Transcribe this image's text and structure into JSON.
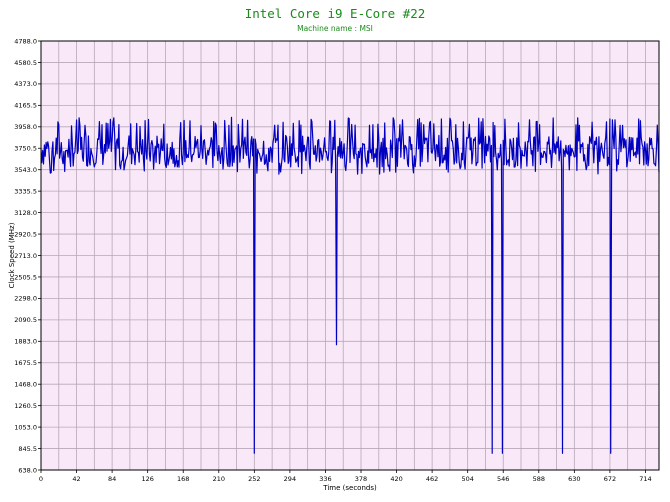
{
  "chart_data": {
    "type": "line",
    "title": "Intel Core i9 E-Core #22",
    "subtitle": "Machine name : MSI",
    "xlabel": "Time (seconds)",
    "ylabel": "Clock Speed (MHz)",
    "xlim": [
      0,
      730
    ],
    "ylim": [
      638.0,
      4788.0
    ],
    "x_ticks": [
      0,
      42,
      84,
      126,
      168,
      210,
      252,
      294,
      336,
      378,
      420,
      462,
      504,
      546,
      588,
      630,
      672,
      714
    ],
    "y_ticks": [
      638.0,
      845.5,
      1053.0,
      1260.5,
      1468.0,
      1675.5,
      1883.0,
      2090.5,
      2298.0,
      2505.5,
      2713.0,
      2920.5,
      3128.0,
      3335.5,
      3543.0,
      3750.5,
      3958.0,
      4165.5,
      4373.0,
      4580.5,
      4788.0
    ],
    "grid": true,
    "background": "#f8e8f8",
    "gridline_color": "#b7a7b7",
    "line_color": "#0000c0",
    "title_color": "#1a8a1a",
    "series": [
      {
        "baseline_mhz": 3750,
        "fluctuation_range_mhz": [
          3500,
          4050
        ],
        "dips": [
          {
            "x": 252,
            "value": 800
          },
          {
            "x": 349,
            "value": 1850
          },
          {
            "x": 533,
            "value": 800
          },
          {
            "x": 545,
            "value": 800
          },
          {
            "x": 616,
            "value": 800
          },
          {
            "x": 673,
            "value": 800
          }
        ]
      }
    ]
  }
}
